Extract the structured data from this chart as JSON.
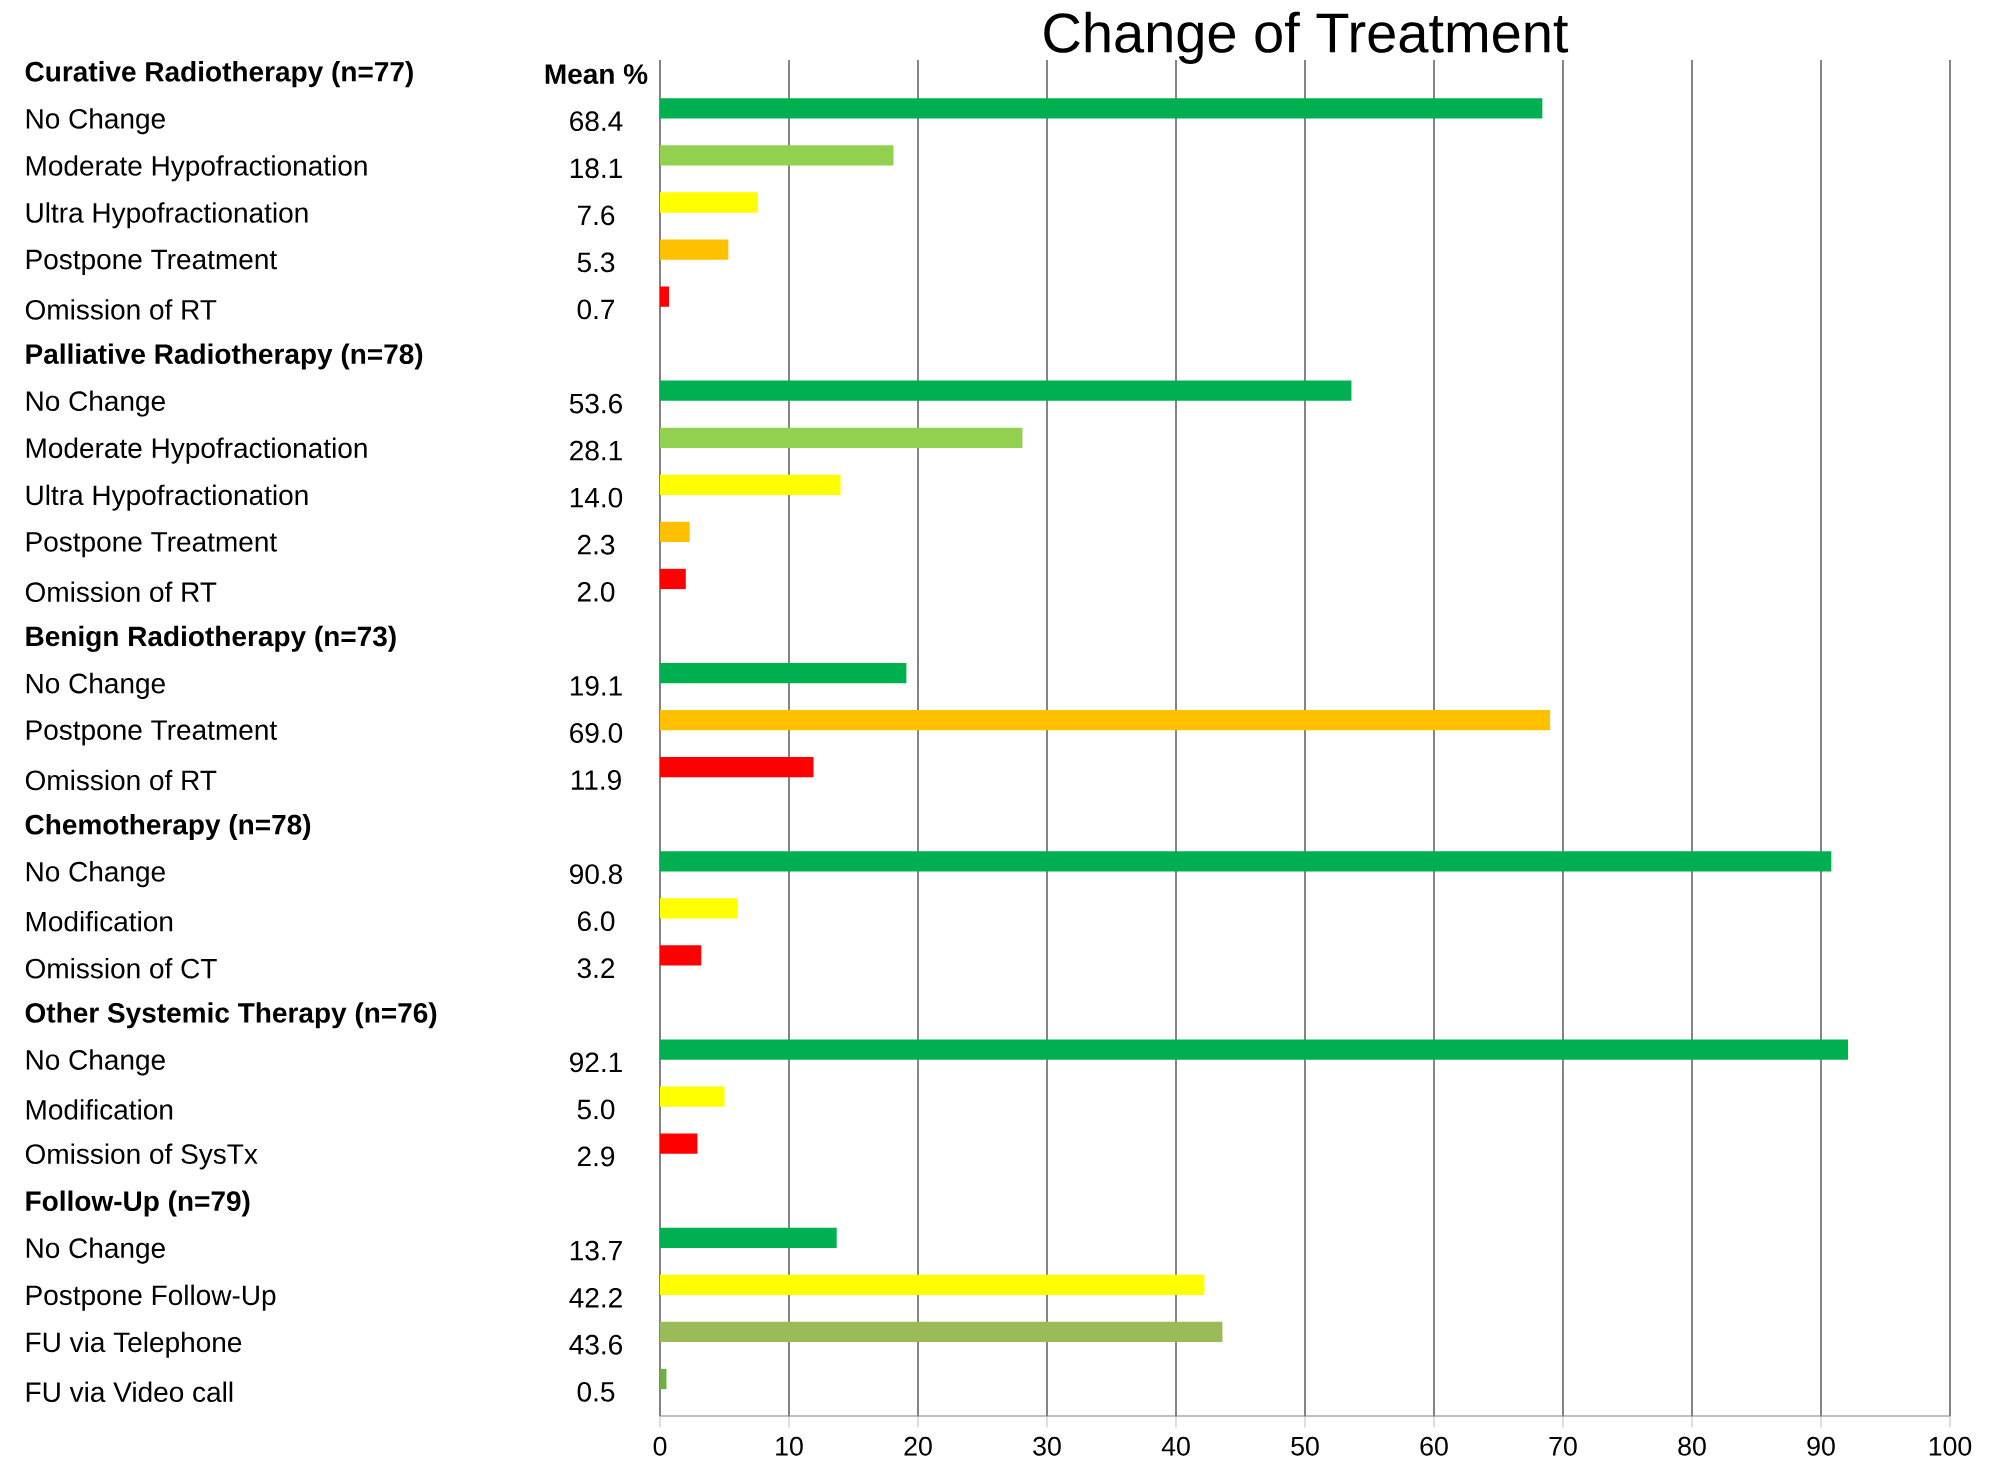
{
  "chart_data": {
    "type": "bar",
    "orientation": "horizontal",
    "title": "Change of Treatment",
    "categories": [
      "Curative Radiotherapy (n=77)",
      "No Change",
      "Moderate Hypofractionation",
      "Ultra Hypofractionation",
      "Postpone Treatment",
      "Omission of RT",
      "Palliative Radiotherapy (n=78)",
      "No Change",
      "Moderate Hypofractionation",
      "Ultra Hypofractionation",
      "Postpone Treatment",
      "Omission of RT",
      "Benign Radiotherapy (n=73)",
      "No Change",
      "Postpone Treatment",
      "Omission of RT",
      "Chemotherapy (n=78)",
      "No Change",
      "Modification",
      "Omission of CT",
      "Other Systemic Therapy (n=76)",
      "No Change",
      "Modification",
      "Omission of SysTx",
      "Follow-Up (n=79)",
      "No Change",
      "Postpone Follow-Up",
      "FU via Telephone",
      "FU via Video call"
    ],
    "values": [
      null,
      68.4,
      18.1,
      7.6,
      5.3,
      0.7,
      null,
      53.6,
      28.1,
      14.0,
      2.3,
      2.0,
      null,
      19.1,
      69.0,
      11.9,
      null,
      90.8,
      6.0,
      3.2,
      null,
      92.1,
      5.0,
      2.9,
      null,
      13.7,
      42.2,
      43.6,
      0.5
    ],
    "value_labels": [
      null,
      "68.4",
      "18.1",
      "7.6",
      "5.3",
      "0.7",
      null,
      "53.6",
      "28.1",
      "14.0",
      "2.3",
      "2.0",
      null,
      "19.1",
      "69.0",
      "11.9",
      null,
      "90.8",
      "6.0",
      "3.2",
      null,
      "92.1",
      "5.0",
      "2.9",
      null,
      "13.7",
      "42.2",
      "43.6",
      "0.5"
    ],
    "colors": [
      null,
      "#00b050",
      "#92d050",
      "#ffff00",
      "#ffc000",
      "#ff0000",
      null,
      "#00b050",
      "#92d050",
      "#ffff00",
      "#ffc000",
      "#ff0000",
      null,
      "#00b050",
      "#ffc000",
      "#ff0000",
      null,
      "#00b050",
      "#ffff00",
      "#ff0000",
      null,
      "#00b050",
      "#ffff00",
      "#ff0000",
      null,
      "#00b050",
      "#ffff00",
      "#9bbb59",
      "#70ad47"
    ],
    "annotations": [
      "Mean %"
    ],
    "xlim": [
      0,
      100
    ],
    "xticks": [
      0,
      10,
      20,
      30,
      40,
      50,
      60,
      70,
      80,
      90,
      100
    ],
    "grid": "x"
  }
}
